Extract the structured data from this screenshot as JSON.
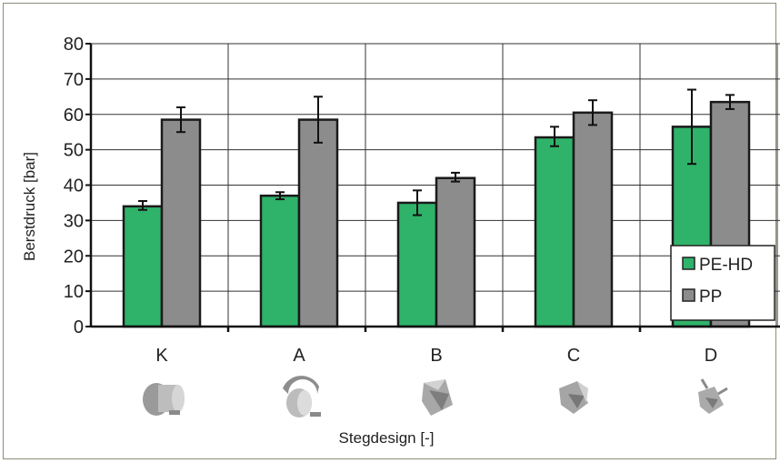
{
  "chart_data": {
    "type": "bar",
    "categories": [
      "K",
      "A",
      "B",
      "C",
      "D"
    ],
    "series": [
      {
        "name": "PE-HD",
        "color": "#2fb36a",
        "values": [
          34,
          37,
          35,
          53.5,
          56.5
        ],
        "error_low": [
          33,
          36,
          31.5,
          51,
          46
        ],
        "error_high": [
          35.5,
          38,
          38.5,
          56.5,
          67
        ]
      },
      {
        "name": "PP",
        "color": "#8c8c8c",
        "values": [
          58.5,
          58.5,
          42,
          60.5,
          63.5
        ],
        "error_low": [
          55,
          52,
          41,
          57,
          61.5
        ],
        "error_high": [
          62,
          65,
          43.5,
          64,
          65.5
        ]
      }
    ],
    "ylabel": "Berstdruck [bar]",
    "xlabel": "Stegdesign [-]",
    "ylim": [
      0,
      80
    ],
    "yticks": [
      "0",
      "10",
      "20",
      "30",
      "40",
      "50",
      "60",
      "70",
      "80"
    ],
    "grid": true,
    "legend_position": "bottom-right",
    "category_icons": [
      "nozzle-part-k-icon",
      "nozzle-part-a-icon",
      "nozzle-part-b-icon",
      "nozzle-part-c-icon",
      "nozzle-part-d-icon"
    ]
  }
}
